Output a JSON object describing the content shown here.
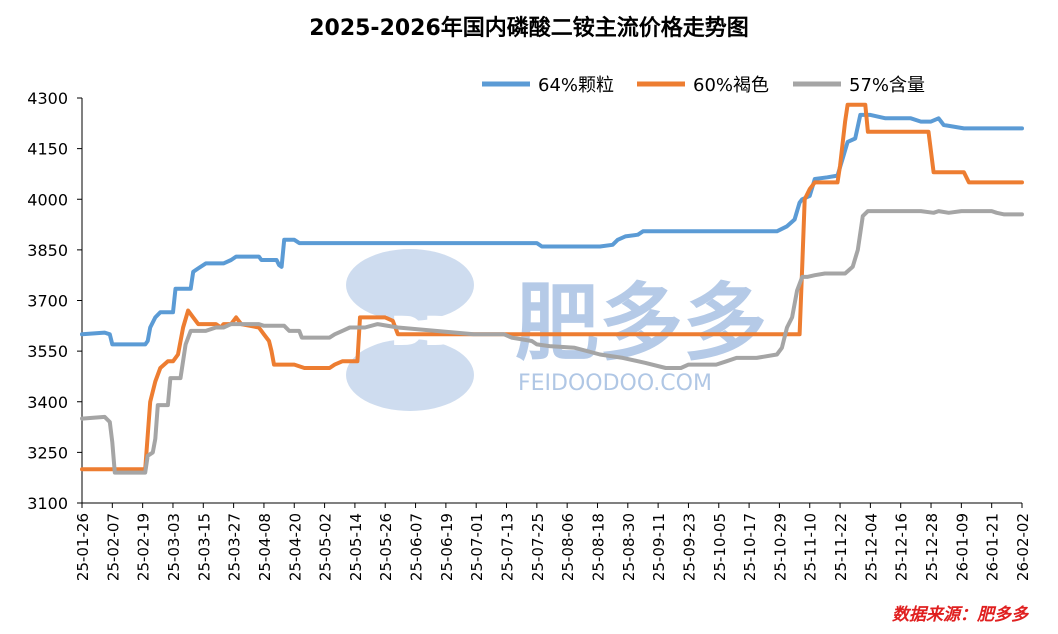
{
  "chart_data": {
    "type": "line",
    "title": "2025-2026年国内磷酸二铵主流价格走势图",
    "source": "数据来源：肥多多",
    "watermark": {
      "brand": "肥多多",
      "logo_text": "FDD",
      "url": "FEIDOODOO.COM"
    },
    "y_ticks": [
      "4300",
      "4150",
      "4000",
      "3850",
      "3700",
      "3550",
      "3400",
      "3250",
      "3100"
    ],
    "ylim": [
      3100,
      4300
    ],
    "x_ticks": [
      "25-01-26",
      "25-02-07",
      "25-02-19",
      "25-03-03",
      "25-03-15",
      "25-03-27",
      "25-04-08",
      "25-04-20",
      "25-05-02",
      "25-05-14",
      "25-05-26",
      "25-06-07",
      "25-06-19",
      "25-07-01",
      "25-07-13",
      "25-07-25",
      "25-08-06",
      "25-08-18",
      "25-08-30",
      "25-09-11",
      "25-09-23",
      "25-10-05",
      "25-10-17",
      "25-10-29",
      "25-11-10",
      "25-11-22",
      "25-12-04",
      "25-12-16",
      "25-12-28",
      "26-01-09",
      "26-01-21",
      "26-02-02"
    ],
    "x_unit": "days since 25-01-26",
    "series": [
      {
        "name": "64%颗粒",
        "color": "#5b9bd5",
        "points": [
          [
            0,
            3600
          ],
          [
            9,
            3605
          ],
          [
            11,
            3600
          ],
          [
            12,
            3570
          ],
          [
            20,
            3570
          ],
          [
            25,
            3570
          ],
          [
            26,
            3580
          ],
          [
            27,
            3620
          ],
          [
            29,
            3650
          ],
          [
            31,
            3665
          ],
          [
            36,
            3665
          ],
          [
            37,
            3735
          ],
          [
            43,
            3735
          ],
          [
            44,
            3785
          ],
          [
            46,
            3795
          ],
          [
            49,
            3810
          ],
          [
            56,
            3810
          ],
          [
            59,
            3820
          ],
          [
            61,
            3830
          ],
          [
            70,
            3830
          ],
          [
            71,
            3820
          ],
          [
            77,
            3820
          ],
          [
            78,
            3805
          ],
          [
            79,
            3800
          ],
          [
            80,
            3880
          ],
          [
            84,
            3880
          ],
          [
            86,
            3870
          ],
          [
            120,
            3870
          ],
          [
            150,
            3870
          ],
          [
            180,
            3870
          ],
          [
            182,
            3860
          ],
          [
            205,
            3860
          ],
          [
            210,
            3865
          ],
          [
            212,
            3880
          ],
          [
            215,
            3890
          ],
          [
            220,
            3895
          ],
          [
            222,
            3905
          ],
          [
            240,
            3905
          ],
          [
            275,
            3905
          ],
          [
            279,
            3920
          ],
          [
            282,
            3940
          ],
          [
            284,
            3990
          ],
          [
            285,
            4000
          ],
          [
            288,
            4010
          ],
          [
            290,
            4060
          ],
          [
            295,
            4065
          ],
          [
            299,
            4070
          ],
          [
            301,
            4120
          ],
          [
            303,
            4170
          ],
          [
            306,
            4180
          ],
          [
            308,
            4250
          ],
          [
            312,
            4250
          ],
          [
            318,
            4240
          ],
          [
            328,
            4240
          ],
          [
            332,
            4230
          ],
          [
            336,
            4230
          ],
          [
            339,
            4240
          ],
          [
            341,
            4220
          ],
          [
            349,
            4210
          ],
          [
            372,
            4210
          ]
        ]
      },
      {
        "name": "60%褐色",
        "color": "#ed7d31",
        "points": [
          [
            0,
            3200
          ],
          [
            25,
            3200
          ],
          [
            26,
            3300
          ],
          [
            27,
            3400
          ],
          [
            29,
            3460
          ],
          [
            31,
            3500
          ],
          [
            34,
            3520
          ],
          [
            36,
            3520
          ],
          [
            38,
            3540
          ],
          [
            40,
            3620
          ],
          [
            42,
            3670
          ],
          [
            44,
            3650
          ],
          [
            46,
            3630
          ],
          [
            49,
            3630
          ],
          [
            53,
            3630
          ],
          [
            55,
            3620
          ],
          [
            56,
            3630
          ],
          [
            59,
            3630
          ],
          [
            61,
            3650
          ],
          [
            63,
            3630
          ],
          [
            70,
            3620
          ],
          [
            72,
            3600
          ],
          [
            74,
            3580
          ],
          [
            75,
            3550
          ],
          [
            76,
            3510
          ],
          [
            78,
            3510
          ],
          [
            84,
            3510
          ],
          [
            88,
            3500
          ],
          [
            98,
            3500
          ],
          [
            100,
            3510
          ],
          [
            103,
            3520
          ],
          [
            109,
            3520
          ],
          [
            110,
            3650
          ],
          [
            120,
            3650
          ],
          [
            123,
            3640
          ],
          [
            125,
            3600
          ],
          [
            150,
            3600
          ],
          [
            200,
            3600
          ],
          [
            250,
            3600
          ],
          [
            284,
            3600
          ],
          [
            285,
            3800
          ],
          [
            286,
            4000
          ],
          [
            288,
            4030
          ],
          [
            290,
            4050
          ],
          [
            299,
            4050
          ],
          [
            300,
            4100
          ],
          [
            302,
            4230
          ],
          [
            303,
            4280
          ],
          [
            310,
            4280
          ],
          [
            311,
            4200
          ],
          [
            322,
            4200
          ],
          [
            330,
            4200
          ],
          [
            335,
            4200
          ],
          [
            337,
            4080
          ],
          [
            341,
            4080
          ],
          [
            346,
            4080
          ],
          [
            349,
            4080
          ],
          [
            351,
            4050
          ],
          [
            357,
            4050
          ],
          [
            362,
            4050
          ],
          [
            364,
            4050
          ],
          [
            372,
            4050
          ]
        ]
      },
      {
        "name": "57%含量",
        "color": "#a5a5a5",
        "points": [
          [
            0,
            3350
          ],
          [
            9,
            3355
          ],
          [
            11,
            3340
          ],
          [
            12,
            3280
          ],
          [
            13,
            3190
          ],
          [
            25,
            3190
          ],
          [
            26,
            3240
          ],
          [
            28,
            3250
          ],
          [
            29,
            3290
          ],
          [
            30,
            3390
          ],
          [
            34,
            3390
          ],
          [
            35,
            3470
          ],
          [
            39,
            3470
          ],
          [
            41,
            3570
          ],
          [
            43,
            3610
          ],
          [
            49,
            3610
          ],
          [
            53,
            3620
          ],
          [
            56,
            3620
          ],
          [
            59,
            3630
          ],
          [
            70,
            3630
          ],
          [
            72,
            3625
          ],
          [
            80,
            3625
          ],
          [
            82,
            3610
          ],
          [
            86,
            3610
          ],
          [
            87,
            3590
          ],
          [
            98,
            3590
          ],
          [
            100,
            3600
          ],
          [
            103,
            3610
          ],
          [
            106,
            3620
          ],
          [
            112,
            3620
          ],
          [
            117,
            3630
          ],
          [
            125,
            3620
          ],
          [
            140,
            3610
          ],
          [
            155,
            3600
          ],
          [
            167,
            3600
          ],
          [
            170,
            3590
          ],
          [
            178,
            3580
          ],
          [
            180,
            3570
          ],
          [
            185,
            3565
          ],
          [
            195,
            3560
          ],
          [
            205,
            3540
          ],
          [
            214,
            3530
          ],
          [
            223,
            3515
          ],
          [
            231,
            3500
          ],
          [
            237,
            3500
          ],
          [
            240,
            3510
          ],
          [
            251,
            3510
          ],
          [
            255,
            3520
          ],
          [
            259,
            3530
          ],
          [
            267,
            3530
          ],
          [
            275,
            3540
          ],
          [
            277,
            3560
          ],
          [
            279,
            3620
          ],
          [
            281,
            3650
          ],
          [
            283,
            3730
          ],
          [
            285,
            3770
          ],
          [
            287,
            3770
          ],
          [
            290,
            3775
          ],
          [
            294,
            3780
          ],
          [
            302,
            3780
          ],
          [
            305,
            3800
          ],
          [
            307,
            3850
          ],
          [
            309,
            3950
          ],
          [
            311,
            3965
          ],
          [
            325,
            3965
          ],
          [
            332,
            3965
          ],
          [
            337,
            3960
          ],
          [
            339,
            3965
          ],
          [
            343,
            3960
          ],
          [
            348,
            3965
          ],
          [
            360,
            3965
          ],
          [
            362,
            3960
          ],
          [
            365,
            3955
          ],
          [
            372,
            3955
          ]
        ]
      }
    ]
  }
}
